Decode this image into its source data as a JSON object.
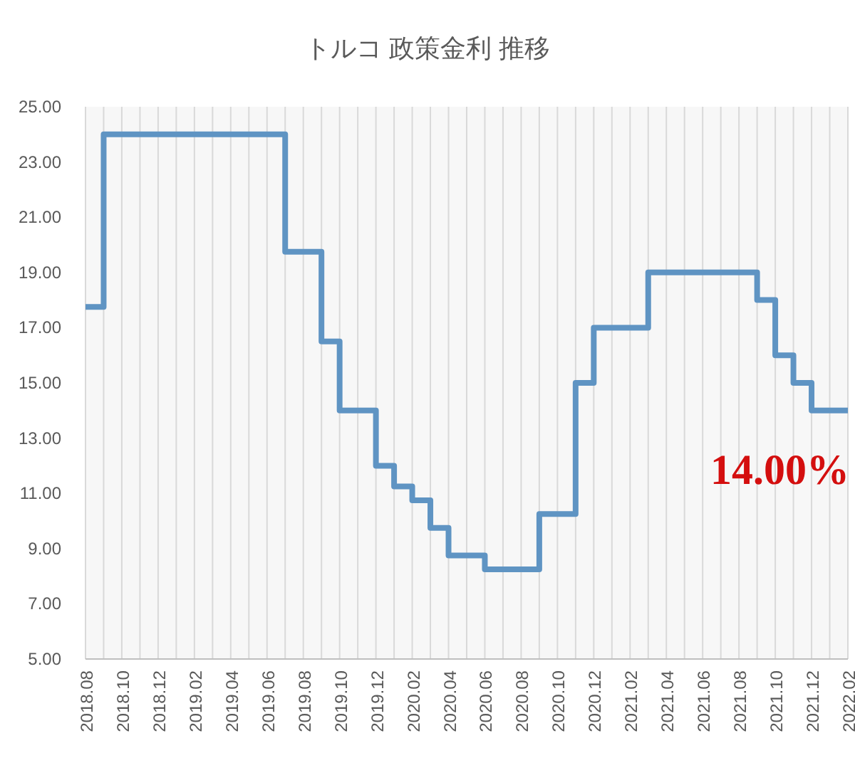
{
  "chart_data": {
    "type": "step",
    "title": "トルコ 政策金利 推移",
    "categories": [
      "2018.08",
      null,
      "2018.10",
      null,
      "2018.12",
      null,
      "2019.02",
      null,
      "2019.04",
      null,
      "2019.06",
      null,
      "2019.08",
      null,
      "2019.10",
      null,
      "2019.12",
      null,
      "2020.02",
      null,
      "2020.04",
      null,
      "2020.06",
      null,
      "2020.08",
      null,
      "2020.10",
      null,
      "2020.12",
      null,
      "2021.02",
      null,
      "2021.04",
      null,
      "2021.06",
      null,
      "2021.08",
      null,
      "2021.10",
      null,
      "2021.12",
      null,
      "2022.02"
    ],
    "series": [
      {
        "color": "#5f94c3",
        "values": [
          17.75,
          24,
          24,
          24,
          24,
          24,
          24,
          24,
          24,
          24,
          24,
          19.75,
          19.75,
          16.5,
          14,
          14,
          12,
          11.25,
          10.75,
          9.75,
          8.75,
          8.75,
          8.25,
          8.25,
          8.25,
          10.25,
          10.25,
          15,
          17,
          17,
          17,
          19,
          19,
          19,
          19,
          19,
          19,
          18,
          16,
          15,
          14,
          14,
          14
        ]
      }
    ],
    "ylim": [
      5,
      25
    ],
    "yticks": [
      {
        "value": 5,
        "label": "5.00"
      },
      {
        "value": 7,
        "label": "7.00"
      },
      {
        "value": 9,
        "label": "9.00"
      },
      {
        "value": 11,
        "label": "11.00"
      },
      {
        "value": 13,
        "label": "13.00"
      },
      {
        "value": 15,
        "label": "15.00"
      },
      {
        "value": 17,
        "label": "17.00"
      },
      {
        "value": 19,
        "label": "19.00"
      },
      {
        "value": 21,
        "label": "21.00"
      },
      {
        "value": 23,
        "label": "23.00"
      },
      {
        "value": 25,
        "label": "25.00"
      }
    ],
    "grid": "x",
    "annotations": [
      "14.00%"
    ]
  }
}
